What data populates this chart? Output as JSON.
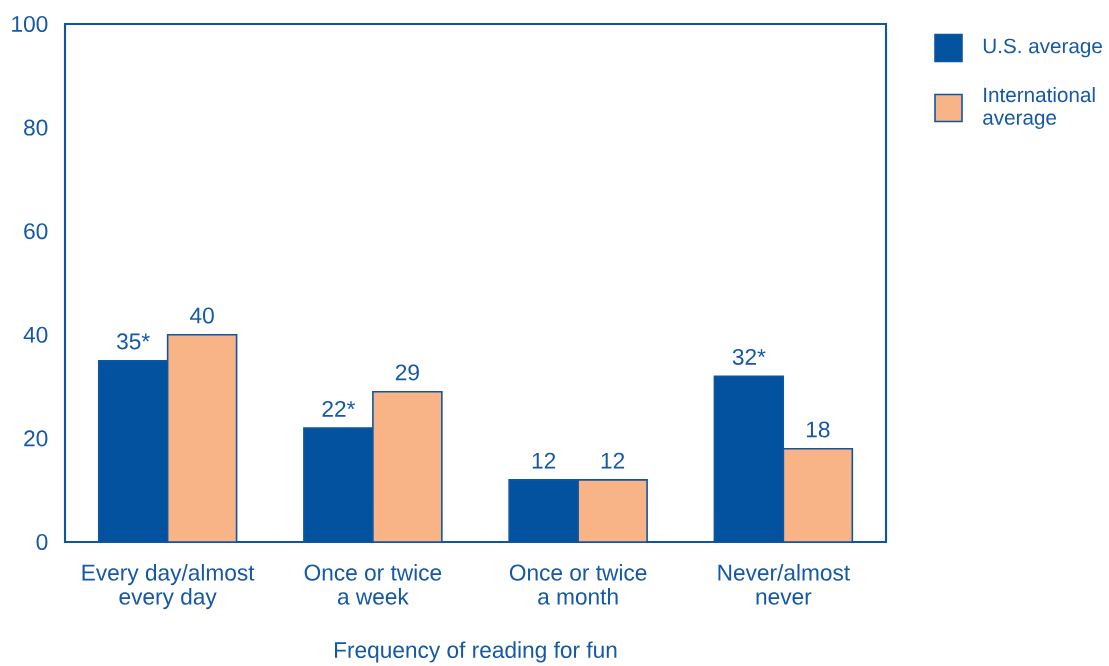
{
  "chart_data": {
    "type": "bar",
    "xlabel": "Frequency of reading for fun",
    "categories": [
      "Every day/almost every day",
      "Once or twice a week",
      "Once or twice a month",
      "Never/almost never"
    ],
    "series": [
      {
        "name": "U.S. average",
        "color": "#02529f",
        "values": [
          35,
          22,
          12,
          32
        ],
        "value_labels": [
          "35*",
          "22*",
          "12",
          "32*"
        ]
      },
      {
        "name": "International average",
        "color": "#f8b486",
        "values": [
          40,
          29,
          12,
          18
        ],
        "value_labels": [
          "40",
          "29",
          "12",
          "18"
        ]
      }
    ],
    "ylim": [
      0,
      100
    ],
    "yticks": [
      0,
      20,
      40,
      60,
      80,
      100
    ],
    "legend": "top right"
  }
}
